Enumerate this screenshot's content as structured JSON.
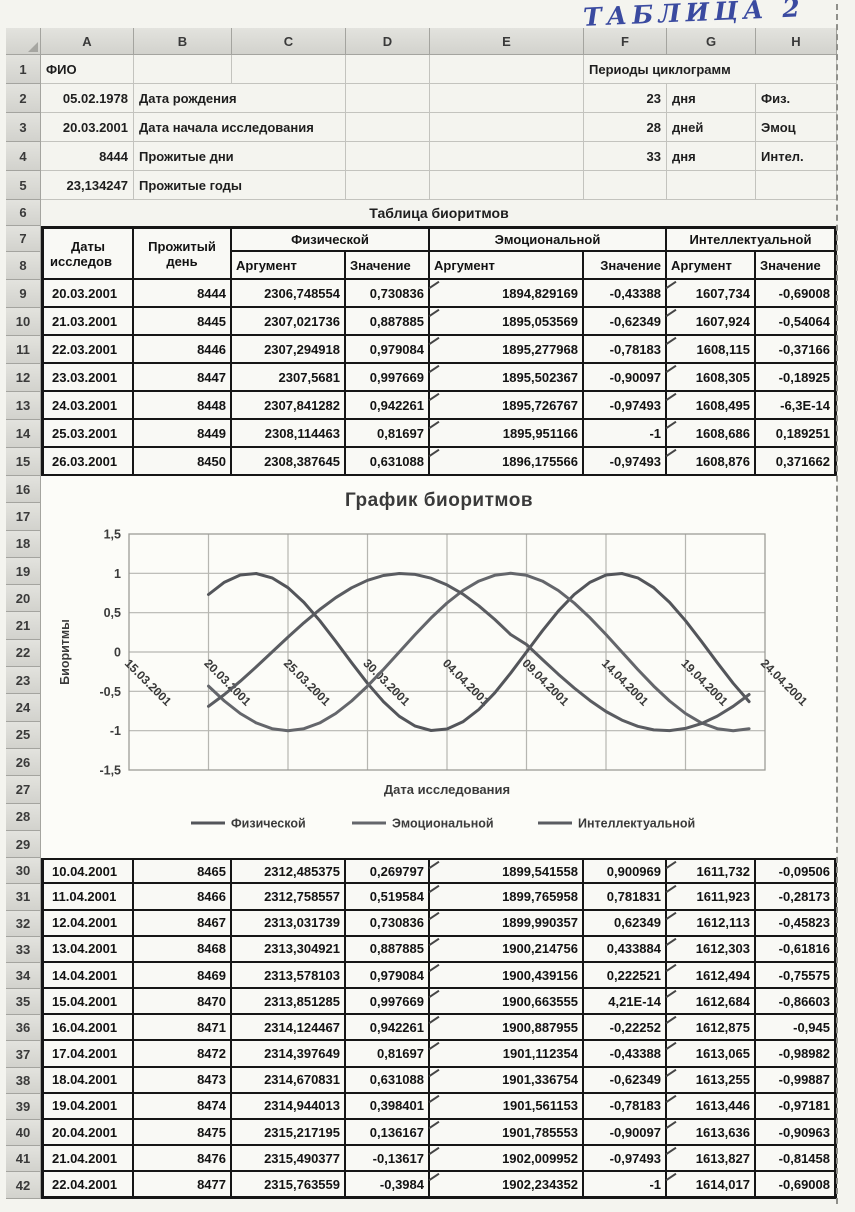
{
  "page": {
    "handwritten_note": "ТАБЛИЦА 2"
  },
  "spreadsheet": {
    "columns": [
      "A",
      "B",
      "C",
      "D",
      "E",
      "F",
      "G",
      "H"
    ],
    "row_count": 42,
    "info": {
      "fio_label": "ФИО",
      "periods_title": "Периоды циклограмм",
      "rows": [
        {
          "a": "05.02.1978",
          "label": "Дата рождения",
          "f": "23",
          "g": "дня",
          "h": "Физ."
        },
        {
          "a": "20.03.2001",
          "label": "Дата начала исследования",
          "f": "28",
          "g": "дней",
          "h": "Эмоц"
        },
        {
          "a": "8444",
          "label": "Прожитые дни",
          "f": "33",
          "g": "дня",
          "h": "Интел."
        },
        {
          "a": "23,134247",
          "label": "Прожитые годы",
          "f": "",
          "g": "",
          "h": ""
        }
      ]
    },
    "table": {
      "title": "Таблица биоритмов",
      "head": {
        "dates_l1": "Даты",
        "dates_l2": "исследов",
        "day_l1": "Прожитый",
        "day_l2": "день",
        "groups": [
          "Физической",
          "Эмоциональной",
          "Интеллектуальной"
        ],
        "arg": "Аргумент",
        "val": "Значение"
      },
      "rows_top_start": 9,
      "rows_top": [
        [
          "20.03.2001",
          "8444",
          "2306,748554",
          "0,730836",
          "1894,829169",
          "-0,43388",
          "1607,734",
          "-0,69008"
        ],
        [
          "21.03.2001",
          "8445",
          "2307,021736",
          "0,887885",
          "1895,053569",
          "-0,62349",
          "1607,924",
          "-0,54064"
        ],
        [
          "22.03.2001",
          "8446",
          "2307,294918",
          "0,979084",
          "1895,277968",
          "-0,78183",
          "1608,115",
          "-0,37166"
        ],
        [
          "23.03.2001",
          "8447",
          "2307,5681",
          "0,997669",
          "1895,502367",
          "-0,90097",
          "1608,305",
          "-0,18925"
        ],
        [
          "24.03.2001",
          "8448",
          "2307,841282",
          "0,942261",
          "1895,726767",
          "-0,97493",
          "1608,495",
          "-6,3E-14"
        ],
        [
          "25.03.2001",
          "8449",
          "2308,114463",
          "0,81697",
          "1895,951166",
          "-1",
          "1608,686",
          "0,189251"
        ],
        [
          "26.03.2001",
          "8450",
          "2308,387645",
          "0,631088",
          "1896,175566",
          "-0,97493",
          "1608,876",
          "0,371662"
        ]
      ],
      "rows_bottom_start": 30,
      "rows_bottom": [
        [
          "10.04.2001",
          "8465",
          "2312,485375",
          "0,269797",
          "1899,541558",
          "0,900969",
          "1611,732",
          "-0,09506"
        ],
        [
          "11.04.2001",
          "8466",
          "2312,758557",
          "0,519584",
          "1899,765958",
          "0,781831",
          "1611,923",
          "-0,28173"
        ],
        [
          "12.04.2001",
          "8467",
          "2313,031739",
          "0,730836",
          "1899,990357",
          "0,62349",
          "1612,113",
          "-0,45823"
        ],
        [
          "13.04.2001",
          "8468",
          "2313,304921",
          "0,887885",
          "1900,214756",
          "0,433884",
          "1612,303",
          "-0,61816"
        ],
        [
          "14.04.2001",
          "8469",
          "2313,578103",
          "0,979084",
          "1900,439156",
          "0,222521",
          "1612,494",
          "-0,75575"
        ],
        [
          "15.04.2001",
          "8470",
          "2313,851285",
          "0,997669",
          "1900,663555",
          "4,21E-14",
          "1612,684",
          "-0,86603"
        ],
        [
          "16.04.2001",
          "8471",
          "2314,124467",
          "0,942261",
          "1900,887955",
          "-0,22252",
          "1612,875",
          "-0,945"
        ],
        [
          "17.04.2001",
          "8472",
          "2314,397649",
          "0,81697",
          "1901,112354",
          "-0,43388",
          "1613,065",
          "-0,98982"
        ],
        [
          "18.04.2001",
          "8473",
          "2314,670831",
          "0,631088",
          "1901,336754",
          "-0,62349",
          "1613,255",
          "-0,99887"
        ],
        [
          "19.04.2001",
          "8474",
          "2314,944013",
          "0,398401",
          "1901,561153",
          "-0,78183",
          "1613,446",
          "-0,97181"
        ],
        [
          "20.04.2001",
          "8475",
          "2315,217195",
          "0,136167",
          "1901,785553",
          "-0,90097",
          "1613,636",
          "-0,90963"
        ],
        [
          "21.04.2001",
          "8476",
          "2315,490377",
          "-0,13617",
          "1902,009952",
          "-0,97493",
          "1613,827",
          "-0,81458"
        ],
        [
          "22.04.2001",
          "8477",
          "2315,763559",
          "-0,3984",
          "1902,234352",
          "-1",
          "1614,017",
          "-0,69008"
        ]
      ]
    }
  },
  "chart_data": {
    "type": "line",
    "title": "График биоритмов",
    "xlabel": "Дата исследования",
    "ylabel": "Биоритмы",
    "ylim": [
      -1.5,
      1.5
    ],
    "ytick_labels": [
      "1,5",
      "1",
      "0,5",
      "0",
      "-0,5",
      "-1",
      "-1,5"
    ],
    "xtick_labels": [
      "15.03.2001",
      "20.03.2001",
      "25.03.2001",
      "30.03.2001",
      "04.04.2001",
      "09.04.2001",
      "14.04.2001",
      "19.04.2001",
      "24.04.2001"
    ],
    "x_days_per_tick": 5,
    "x_axis_total_days": 40,
    "data_start_tick_offset_days": 5,
    "data_dates_range": [
      "20.03.2001",
      "23.04.2001"
    ],
    "grid": true,
    "legend_position": "bottom",
    "series": [
      {
        "name": "Физической",
        "period_days": 23,
        "color": "#53555a",
        "values": [
          0.730836,
          0.887885,
          0.979084,
          0.997669,
          0.942261,
          0.81697,
          0.631088,
          0.398401,
          0.136167,
          -0.136167,
          -0.398401,
          -0.631088,
          -0.81697,
          -0.942261,
          -0.997669,
          -0.979084,
          -0.887885,
          -0.730836,
          -0.519584,
          -0.269797,
          0,
          0.269797,
          0.519584,
          0.730836,
          0.887885,
          0.979084,
          0.997669,
          0.942261,
          0.81697,
          0.631088,
          0.398401,
          0.136167,
          -0.136167,
          -0.3984,
          -0.631088
        ]
      },
      {
        "name": "Эмоциональной",
        "period_days": 28,
        "color": "#64666b",
        "values": [
          -0.433884,
          -0.62349,
          -0.781831,
          -0.900969,
          -0.974928,
          -1,
          -0.974928,
          -0.900969,
          -0.781831,
          -0.62349,
          -0.433884,
          -0.222521,
          0,
          0.222521,
          0.433884,
          0.62349,
          0.781831,
          0.900969,
          0.974928,
          1,
          0.974928,
          0.900969,
          0.781831,
          0.62349,
          0.433884,
          0.222521,
          0,
          -0.222521,
          -0.433884,
          -0.62349,
          -0.781831,
          -0.900969,
          -0.974928,
          -1,
          -0.974928
        ]
      },
      {
        "name": "Интеллектуальной",
        "period_days": 33,
        "color": "#5a5c61",
        "values": [
          -0.69008,
          -0.54064,
          -0.37166,
          -0.18925,
          0,
          0.189251,
          0.371662,
          0.540641,
          0.690079,
          0.815746,
          0.910906,
          0.97237,
          0.997945,
          0.986361,
          0.937752,
          0.853553,
          0.735724,
          0.587785,
          0.414737,
          0.222521,
          0.09506,
          -0.09506,
          -0.28173,
          -0.45823,
          -0.61816,
          -0.75575,
          -0.86603,
          -0.945,
          -0.98982,
          -0.99887,
          -0.97181,
          -0.90963,
          -0.81458,
          -0.69008,
          -0.54064
        ]
      }
    ]
  }
}
